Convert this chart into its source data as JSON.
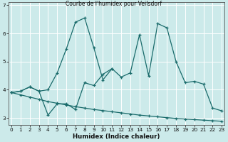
{
  "title": "Courbe de l'humidex pour Veilsdorf",
  "xlabel": "Humidex (Indice chaleur)",
  "bg_color": "#cceaea",
  "grid_color": "#ffffff",
  "line_color": "#1a6b6b",
  "x_values": [
    0,
    1,
    2,
    3,
    4,
    5,
    6,
    7,
    8,
    9,
    10,
    11,
    12,
    13,
    14,
    15,
    16,
    17,
    18,
    19,
    20,
    21,
    22,
    23
  ],
  "series1": [
    3.9,
    3.95,
    4.1,
    3.95,
    3.1,
    3.5,
    3.5,
    3.3,
    4.25,
    4.15,
    4.55,
    4.75,
    4.45,
    4.6,
    5.95,
    4.5,
    6.35,
    6.2,
    5.0,
    4.25,
    4.3,
    4.2,
    3.35,
    3.25
  ],
  "series2_x": [
    0,
    1,
    2,
    3,
    4,
    5,
    6,
    7,
    8,
    9,
    10,
    11
  ],
  "series2_y": [
    3.9,
    3.95,
    4.1,
    3.95,
    4.0,
    4.6,
    5.45,
    6.4,
    6.55,
    5.5,
    4.35,
    4.75
  ],
  "series3": [
    3.9,
    3.82,
    3.74,
    3.66,
    3.58,
    3.52,
    3.46,
    3.4,
    3.35,
    3.3,
    3.26,
    3.22,
    3.18,
    3.14,
    3.1,
    3.07,
    3.04,
    3.01,
    2.98,
    2.96,
    2.94,
    2.92,
    2.9,
    2.88
  ],
  "ylim": [
    2.75,
    7.1
  ],
  "xlim": [
    -0.3,
    23.3
  ],
  "yticks": [
    3,
    4,
    5,
    6,
    7
  ],
  "xticks": [
    0,
    1,
    2,
    3,
    4,
    5,
    6,
    7,
    8,
    9,
    10,
    11,
    12,
    13,
    14,
    15,
    16,
    17,
    18,
    19,
    20,
    21,
    22,
    23
  ]
}
